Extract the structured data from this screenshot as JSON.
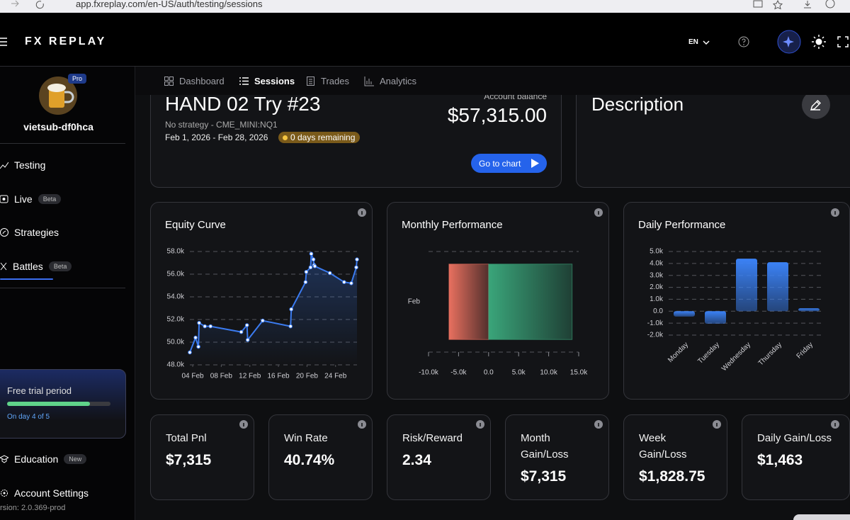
{
  "browser": {
    "url": "app.fxreplay.com/en-US/auth/testing/sessions"
  },
  "header": {
    "logo": "FX REPLAY",
    "language": "EN"
  },
  "sidebar": {
    "badge": "Pro",
    "username": "vietsub-df0hca",
    "menu": [
      {
        "label": "Testing"
      },
      {
        "label": "Live",
        "tag": "Beta"
      },
      {
        "label": "Strategies"
      },
      {
        "label": "Battles",
        "tag": "Beta"
      }
    ],
    "trial": {
      "title": "Free trial period",
      "status": "On day 4 of 5"
    },
    "bottom": [
      {
        "label": "Education",
        "tag": "New"
      },
      {
        "label": "Account Settings"
      }
    ],
    "version": "rsion: 2.0.369-prod"
  },
  "tabs": [
    "Dashboard",
    "Sessions",
    "Trades",
    "Analytics"
  ],
  "active_tab": 1,
  "session": {
    "balance_label": "Account balance",
    "title": "HAND 02 Try #23",
    "strategy": "No strategy - CME_MINI:NQ1",
    "dates": "Feb 1, 2026 - Feb 28, 2026",
    "remaining": "0 days remaining",
    "balance": "$57,315.00",
    "button": "Go to chart"
  },
  "description": {
    "title": "Description"
  },
  "chart_data": [
    {
      "type": "line",
      "title": "Equity Curve",
      "x": [
        3.6,
        4.4,
        4.8,
        4.9,
        5.7,
        6.5,
        10.8,
        11.6,
        11.7,
        13.8,
        17.7,
        17.8,
        19.8,
        19.9,
        20.5,
        20.6,
        20.9,
        21.0,
        21.1,
        23.2,
        25.2,
        26.2,
        26.9,
        27.0
      ],
      "series": [
        {
          "color": "#3b7bf0",
          "values": [
            49100,
            50400,
            49600,
            51700,
            51400,
            51400,
            50900,
            51500,
            50200,
            51900,
            51400,
            52900,
            55300,
            56200,
            56600,
            57800,
            57300,
            56800,
            56700,
            56100,
            55300,
            55200,
            56600,
            57300
          ]
        }
      ],
      "xlim": [
        3.6,
        27
      ],
      "xticks": [
        {
          "value": 4,
          "label": "04 Feb"
        },
        {
          "value": 8,
          "label": "08 Feb"
        },
        {
          "value": 12,
          "label": "12 Feb"
        },
        {
          "value": 16,
          "label": "16 Feb"
        },
        {
          "value": 20,
          "label": "20 Feb"
        },
        {
          "value": 24,
          "label": "24 Feb"
        }
      ],
      "ylim": [
        48000,
        58000
      ],
      "yticks": [
        {
          "value": 48000,
          "label": "48.0k"
        },
        {
          "value": 50000,
          "label": "50.0k"
        },
        {
          "value": 52000,
          "label": "52.0k"
        },
        {
          "value": 54000,
          "label": "54.0k"
        },
        {
          "value": 56000,
          "label": "56.0k"
        },
        {
          "value": 58000,
          "label": "58.0k"
        }
      ],
      "grid": true
    },
    {
      "type": "bar",
      "orientation": "horizontal",
      "title": "Monthly Performance",
      "categories": [
        "Feb"
      ],
      "series": [
        {
          "color": "#e8705f",
          "values": [
            -6600
          ]
        },
        {
          "color": "#3aa57a",
          "values": [
            13900
          ]
        }
      ],
      "xlim": [
        -10000,
        15000
      ],
      "xticks": [
        {
          "value": -10000,
          "label": "-10.0k"
        },
        {
          "value": -5000,
          "label": "-5.0k"
        },
        {
          "value": 0,
          "label": "0.0"
        },
        {
          "value": 5000,
          "label": "5.0k"
        },
        {
          "value": 10000,
          "label": "10.0k"
        },
        {
          "value": 15000,
          "label": "15.0k"
        }
      ]
    },
    {
      "type": "bar",
      "title": "Daily Performance",
      "categories": [
        "Monday",
        "Tuesday",
        "Wednesday",
        "Thursday",
        "Friday"
      ],
      "values": [
        -450,
        -1050,
        4400,
        4100,
        250
      ],
      "color": "#3b82f6",
      "ylim": [
        -2000,
        5000
      ],
      "yticks": [
        {
          "value": -2000,
          "label": "-2.0k"
        },
        {
          "value": -1000,
          "label": "-1.0k"
        },
        {
          "value": 0,
          "label": "0.0"
        },
        {
          "value": 1000,
          "label": "1.0k"
        },
        {
          "value": 2000,
          "label": "2.0k"
        },
        {
          "value": 3000,
          "label": "3.0k"
        },
        {
          "value": 4000,
          "label": "4.0k"
        },
        {
          "value": 5000,
          "label": "5.0k"
        }
      ],
      "grid": true
    }
  ],
  "stats": [
    {
      "label": "Total Pnl",
      "value": "$7,315"
    },
    {
      "label": "Win Rate",
      "value": "40.74%"
    },
    {
      "label": "Risk/Reward",
      "value": "2.34"
    },
    {
      "label": "Month Gain/Loss",
      "value": "$7,315"
    },
    {
      "label": "Week Gain/Loss",
      "value": "$1,828.75"
    },
    {
      "label": "Daily Gain/Loss",
      "value": "$1,463"
    }
  ]
}
